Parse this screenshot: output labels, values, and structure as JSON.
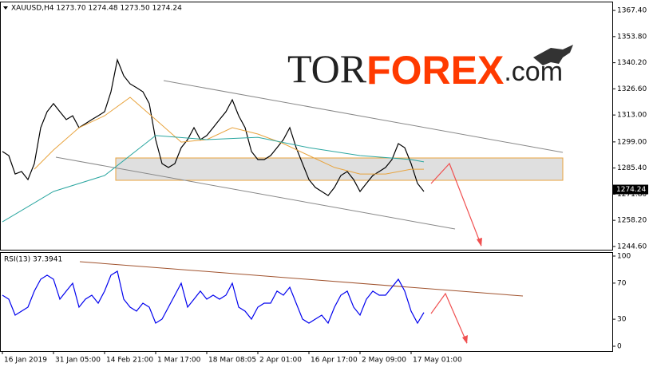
{
  "chart_data": [
    {
      "type": "line",
      "title": "XAUUSD,H4  1273.70 1274.48 1273.50 1274.24",
      "categories": [
        "16 Jan 2019",
        null,
        null,
        null,
        null,
        null,
        null,
        null,
        "31 Jan 05:00",
        null,
        null,
        null,
        null,
        null,
        null,
        null,
        "14 Feb 21:00",
        null,
        null,
        null,
        null,
        null,
        null,
        null,
        "1 Mar 17:00",
        null,
        null,
        null,
        null,
        null,
        null,
        null,
        "18 Mar 08:05",
        null,
        null,
        null,
        null,
        null,
        null,
        null,
        "2 Apr 01:00",
        null,
        null,
        null,
        null,
        null,
        null,
        null,
        "16 Apr 17:00",
        null,
        null,
        null,
        null,
        null,
        null,
        null,
        "2 May 09:00",
        null,
        null,
        null,
        null,
        null,
        null,
        null,
        "17 May 01:00",
        null,
        null
      ],
      "series": [
        {
          "color": "#000000",
          "values": [
            1294.0,
            1291.9,
            1282.3,
            1283.6,
            1279.4,
            1287.7,
            1306.4,
            1314.7,
            1318.9,
            1314.7,
            1310.6,
            1312.6,
            1306.4,
            1308.5,
            1310.6,
            1312.6,
            1314.7,
            1325.1,
            1341.7,
            1333.4,
            1329.2,
            1327.2,
            1325.1,
            1318.9,
            1300.2,
            1287.7,
            1285.7,
            1287.7,
            1296.0,
            1300.2,
            1306.4,
            1300.2,
            1302.3,
            1306.4,
            1310.6,
            1314.7,
            1320.9,
            1312.6,
            1306.4,
            1294.0,
            1289.8,
            1289.8,
            1291.9,
            1296.0,
            1300.2,
            1306.4,
            1296.0,
            1287.7,
            1279.4,
            1275.3,
            1273.2,
            1271.1,
            1275.3,
            1281.5,
            1283.6,
            1279.4,
            1273.2,
            1277.4,
            1281.5,
            1283.6,
            1285.7,
            1289.8,
            1298.1,
            1296.0,
            1287.7,
            1277.4,
            1273.2
          ]
        },
        {
          "color": "#e8a33d",
          "x": [
            5,
            8,
            12,
            16,
            20,
            24,
            28,
            32,
            36,
            40,
            44,
            48,
            52,
            56,
            60,
            64,
            66
          ],
          "values": [
            1284.8,
            1294.8,
            1306.4,
            1312.6,
            1322.2,
            1310.6,
            1298.9,
            1300.2,
            1306.4,
            1303.1,
            1298.1,
            1291.9,
            1285.7,
            1282.3,
            1282.3,
            1284.8,
            1284.8
          ]
        },
        {
          "color": "#2aa6a0",
          "x": [
            0,
            8,
            16,
            24,
            32,
            40,
            48,
            56,
            64,
            66
          ],
          "values": [
            1257.4,
            1273.2,
            1281.5,
            1302.3,
            1300.2,
            1301.4,
            1296.0,
            1291.9,
            1289.8,
            1288.6
          ]
        }
      ],
      "current_price": {
        "value": 1274.24,
        "label": "1274.24"
      },
      "ylim": [
        1242.9,
        1372.0
      ],
      "yticks": [
        {
          "value": 1367.4,
          "label": "1367.40"
        },
        {
          "value": 1353.8,
          "label": "1353.80"
        },
        {
          "value": 1340.2,
          "label": "1340.20"
        },
        {
          "value": 1326.6,
          "label": "1326.60"
        },
        {
          "value": 1313.0,
          "label": "1313.00"
        },
        {
          "value": 1299.0,
          "label": "1299.00"
        },
        {
          "value": 1285.4,
          "label": "1285.40"
        },
        {
          "value": 1271.8,
          "label": "1271.80"
        },
        {
          "value": 1258.2,
          "label": "1258.20"
        },
        {
          "value": 1244.6,
          "label": "1244.60"
        }
      ]
    },
    {
      "type": "line",
      "title": "RSI(13) 37.3941",
      "series": [
        {
          "color": "#0000ee",
          "values": [
            56.6,
            52.2,
            34.5,
            38.9,
            43.4,
            61.1,
            74.3,
            78.8,
            74.3,
            52.2,
            61.1,
            69.9,
            43.4,
            52.2,
            56.6,
            47.8,
            61.1,
            78.8,
            83.2,
            52.2,
            43.4,
            38.9,
            47.8,
            43.4,
            25.7,
            30.1,
            43.4,
            56.6,
            69.9,
            43.4,
            52.2,
            61.1,
            52.2,
            56.6,
            52.2,
            56.6,
            69.9,
            43.4,
            38.9,
            30.1,
            43.4,
            47.8,
            47.8,
            61.1,
            56.6,
            65.5,
            47.8,
            30.1,
            25.7,
            30.1,
            34.5,
            25.7,
            43.4,
            56.6,
            61.1,
            43.4,
            34.5,
            52.2,
            61.1,
            56.6,
            56.6,
            65.5,
            74.3,
            61.1,
            38.9,
            25.7,
            37.4
          ]
        }
      ],
      "ylim": [
        -5.3,
        104.4
      ],
      "yticks": [
        0,
        30,
        70,
        100
      ]
    }
  ],
  "watermark": {
    "tor": "TOR",
    "forex": "FOREX",
    "com": ".com"
  }
}
